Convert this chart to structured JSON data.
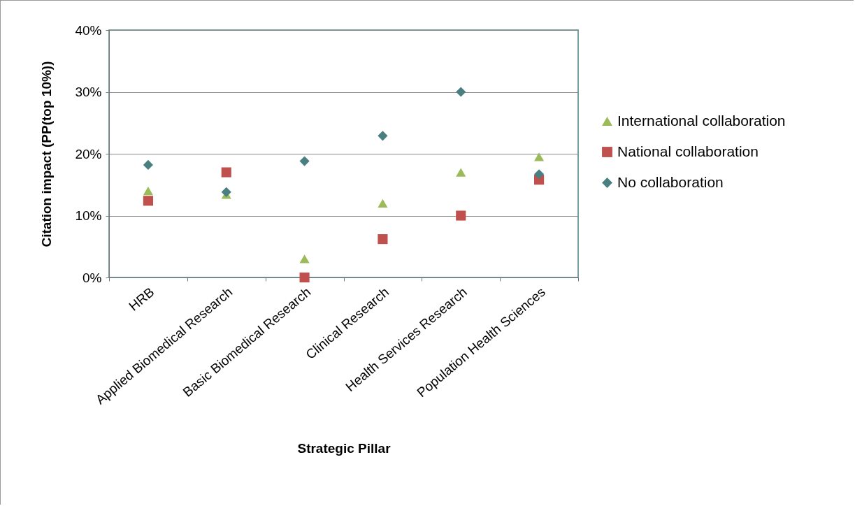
{
  "chart_data": {
    "type": "scatter",
    "xlabel": "Strategic Pillar",
    "ylabel": "Citation impact (PP(top 10%))",
    "categories": [
      "HRB",
      "Applied Biomedical Research",
      "Basic Biomedical Research",
      "Clinical Research",
      "Health Services Research",
      "Population Health Sciences"
    ],
    "series": [
      {
        "name": "International collaboration",
        "color": "#9bbb59",
        "marker": "triangle",
        "values": [
          14,
          13.4,
          3,
          12,
          17,
          19.5
        ]
      },
      {
        "name": "National collaboration",
        "color": "#c0504d",
        "marker": "square",
        "values": [
          12.4,
          17,
          0,
          6.2,
          10,
          15.8
        ]
      },
      {
        "name": "No collaboration",
        "color": "#4a7f81",
        "marker": "diamond",
        "values": [
          18.2,
          13.8,
          18.8,
          22.9,
          30,
          16.7
        ]
      }
    ],
    "ylim": [
      0,
      40
    ],
    "yticks": [
      {
        "value": 0,
        "label": "0%"
      },
      {
        "value": 10,
        "label": "10%"
      },
      {
        "value": 20,
        "label": "20%"
      },
      {
        "value": 30,
        "label": "30%"
      },
      {
        "value": 40,
        "label": "40%"
      }
    ],
    "grid": "y",
    "legend": "right"
  }
}
